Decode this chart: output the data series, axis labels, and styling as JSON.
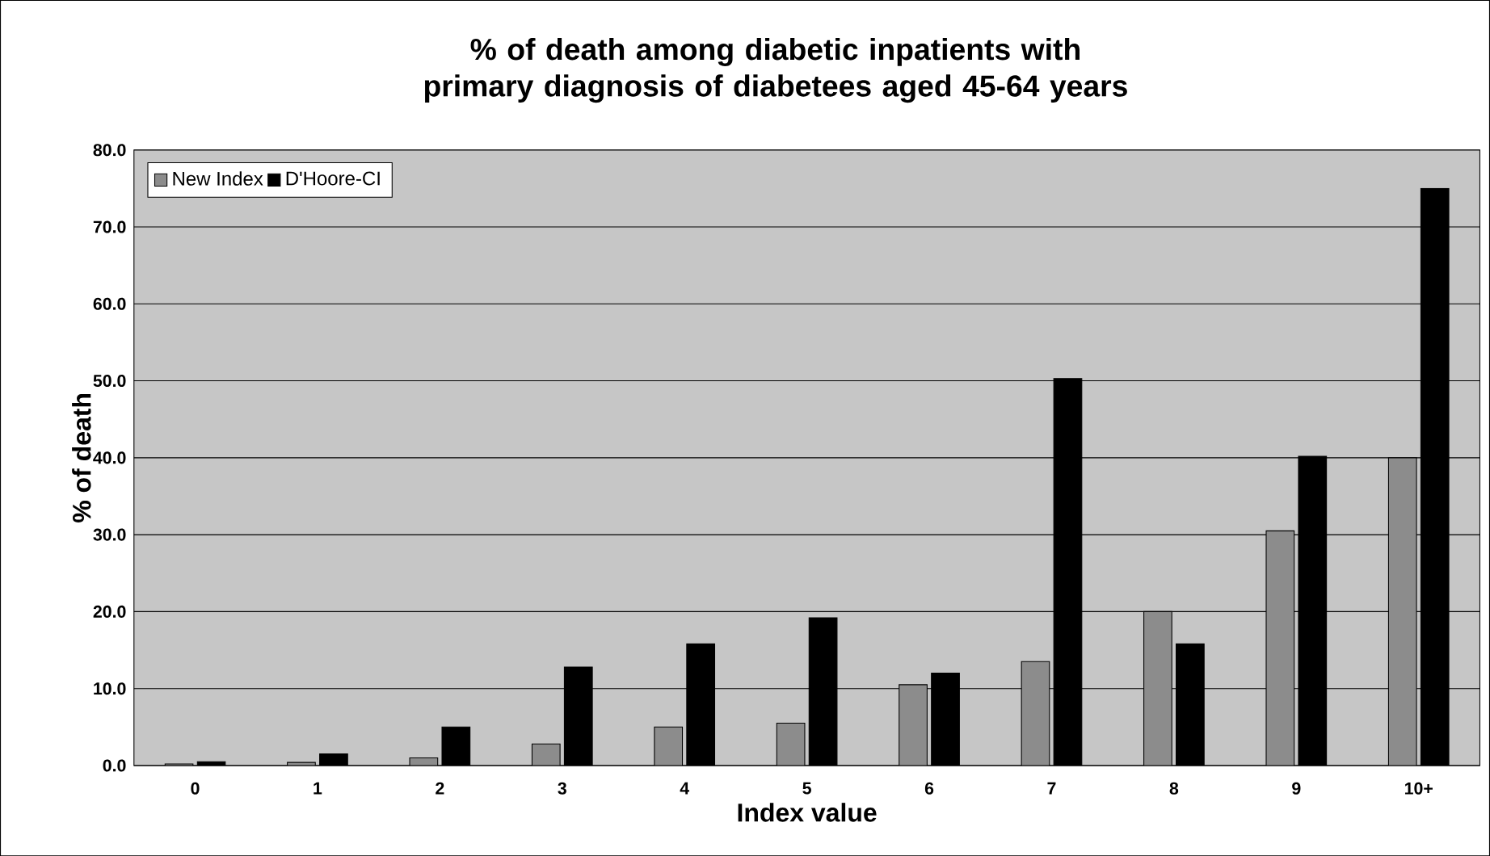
{
  "chart_data": {
    "type": "bar",
    "title": "% of death among diabetic inpatients with primary diagnosis of diabetees aged 45-64 years",
    "xlabel": "Index value",
    "ylabel": "% of death",
    "categories": [
      "0",
      "1",
      "2",
      "3",
      "4",
      "5",
      "6",
      "7",
      "8",
      "9",
      "10+"
    ],
    "series": [
      {
        "name": "New Index",
        "color": "#8c8c8c",
        "values": [
          0.2,
          0.4,
          1.0,
          2.8,
          5.0,
          5.5,
          10.5,
          13.5,
          20.0,
          30.5,
          40.0
        ]
      },
      {
        "name": "D'Hoore-CI",
        "color": "#000000",
        "values": [
          0.5,
          1.5,
          5.0,
          12.8,
          15.8,
          19.2,
          12.0,
          50.3,
          15.8,
          40.2,
          75.0
        ]
      }
    ],
    "ylim": [
      0,
      80
    ],
    "yticks": [
      {
        "value": 0,
        "label": "0.0"
      },
      {
        "value": 10,
        "label": "10.0"
      },
      {
        "value": 20,
        "label": "20.0"
      },
      {
        "value": 30,
        "label": "30.0"
      },
      {
        "value": 40,
        "label": "40.0"
      },
      {
        "value": 50,
        "label": "50.0"
      },
      {
        "value": 60,
        "label": "60.0"
      },
      {
        "value": 70,
        "label": "70.0"
      },
      {
        "value": 80,
        "label": "80.0"
      }
    ],
    "grid": "y",
    "legend": "top left"
  }
}
